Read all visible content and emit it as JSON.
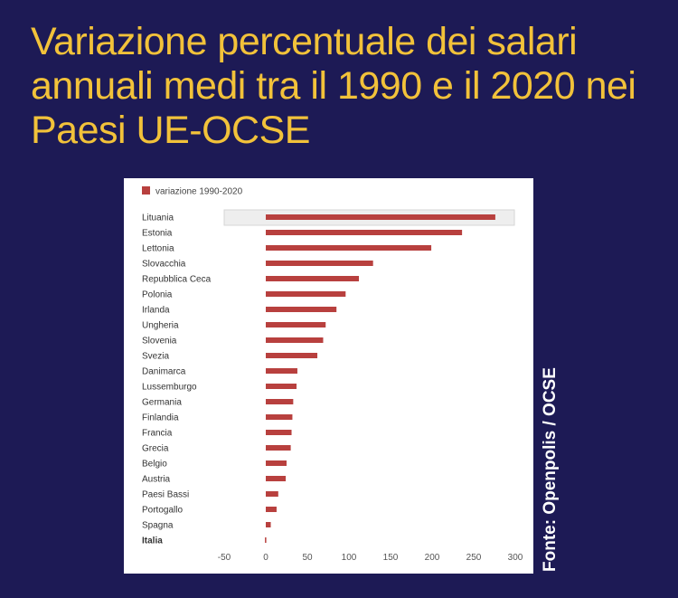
{
  "headline": "Variazione percentuale dei salari annuali medi tra il 1990 e il 2020 nei Paesi UE-OCSE",
  "source": "Fonte: Openpolis / OCSE",
  "colors": {
    "background": "#1d1a55",
    "headline": "#f2c23a",
    "bar": "#b8403e",
    "card": "#ffffff"
  },
  "chart_data": {
    "type": "bar",
    "orientation": "horizontal",
    "legend": {
      "position": "top-left"
    },
    "categories": [
      "Lituania",
      "Estonia",
      "Lettonia",
      "Slovacchia",
      "Repubblica Ceca",
      "Polonia",
      "Irlanda",
      "Ungheria",
      "Slovenia",
      "Svezia",
      "Danimarca",
      "Lussemburgo",
      "Germania",
      "Finlandia",
      "Francia",
      "Grecia",
      "Belgio",
      "Austria",
      "Paesi Bassi",
      "Portogallo",
      "Spagna",
      "Italia"
    ],
    "highlight_category": "Italia",
    "series": [
      {
        "name": "variazione 1990-2020",
        "values": [
          276,
          236,
          199,
          129,
          112,
          96,
          85,
          72,
          69,
          62,
          38,
          37,
          33,
          32,
          31,
          30,
          25,
          24,
          15,
          13,
          6,
          -1
        ]
      }
    ],
    "xlim": [
      -60,
      300
    ],
    "xticks": [
      -50,
      0,
      50,
      100,
      150,
      200,
      250,
      300
    ],
    "grid": false
  }
}
